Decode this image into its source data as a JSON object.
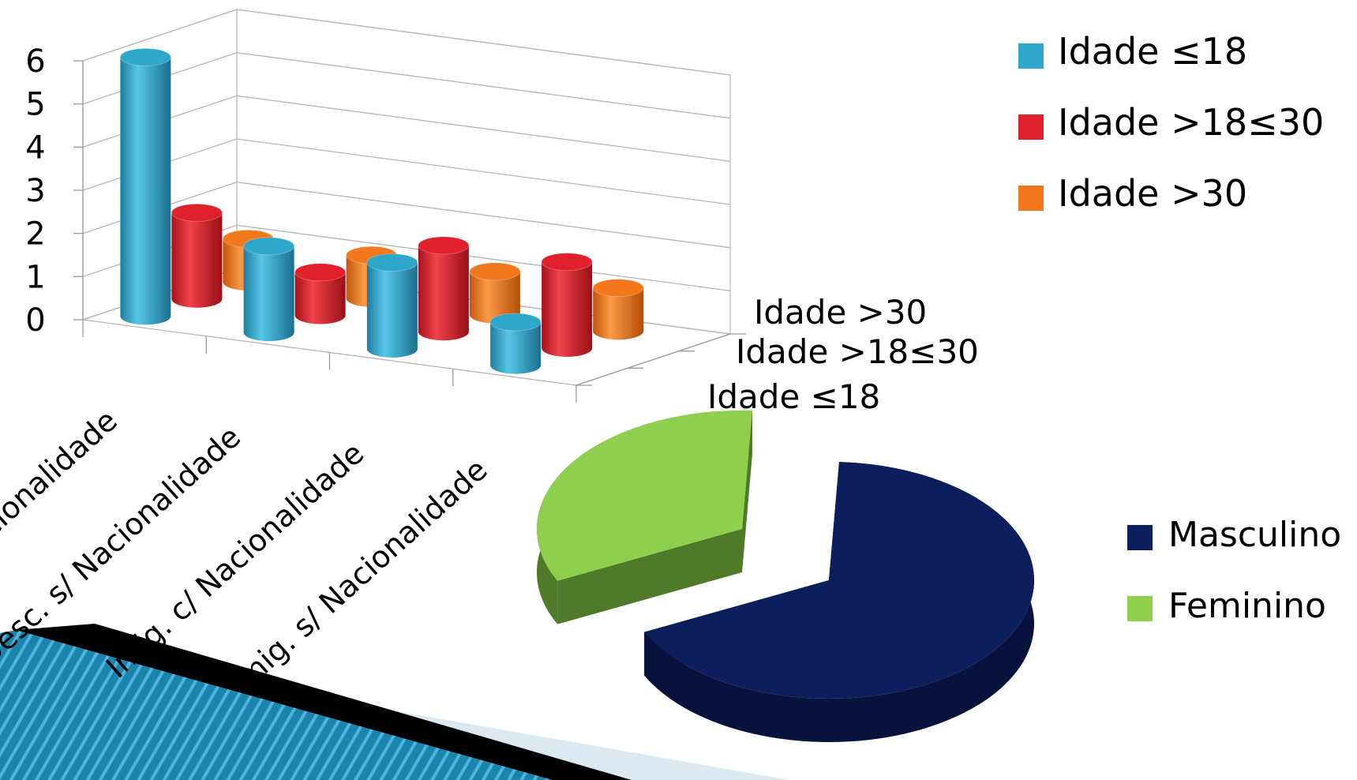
{
  "bar_chart": {
    "chart_data": {
      "type": "bar",
      "categories": [
        "c/ Nacionalidade",
        "Desc. s/ Nacionalidade",
        "Imig. c/ Nacionalidade",
        "Imig. s/ Nacionalidade"
      ],
      "series": [
        {
          "name": "Idade ≤18",
          "values": [
            6,
            2,
            2,
            1
          ],
          "color": "#2fa7cb"
        },
        {
          "name": "Idade >18≤30",
          "values": [
            2,
            1,
            2,
            2
          ],
          "color": "#e0202a"
        },
        {
          "name": "Idade >30",
          "values": [
            1,
            1,
            1,
            1
          ],
          "color": "#f2781e"
        }
      ],
      "y_ticks": [
        "0",
        "1",
        "2",
        "3",
        "4",
        "5",
        "6"
      ],
      "ylim": [
        0,
        6
      ],
      "depth_labels": [
        "Idade >30",
        "Idade >18≤30",
        "Idade ≤18"
      ],
      "grid": true,
      "legend": "top-right",
      "style": "3d-cylinder"
    }
  },
  "pie_chart": {
    "chart_data": {
      "type": "pie",
      "labels": [
        "Masculino",
        "Feminino"
      ],
      "values": [
        67,
        33
      ],
      "colors": [
        "#0c1f5c",
        "#8fcf4e"
      ],
      "legend": "right",
      "style": "3d-exploded"
    }
  }
}
